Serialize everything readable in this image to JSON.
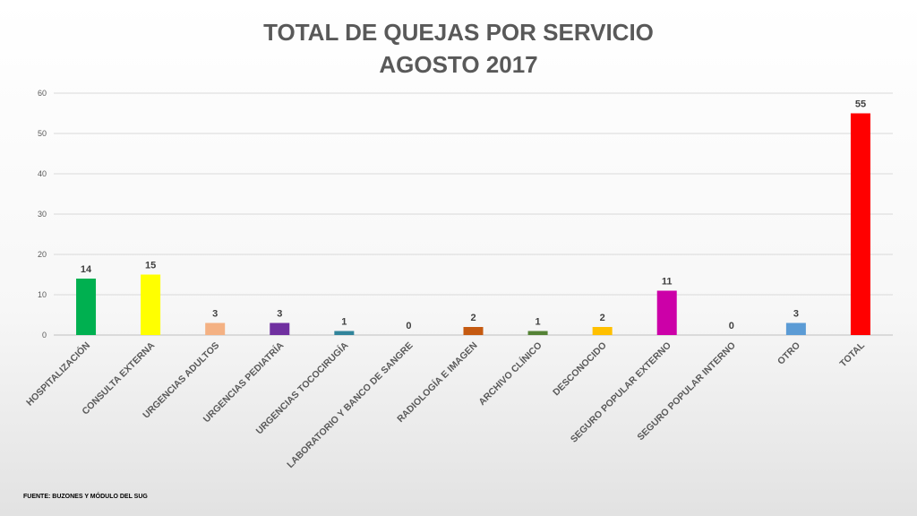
{
  "chart_data": {
    "type": "bar",
    "title": "TOTAL DE QUEJAS POR SERVICIO",
    "subtitle": "AGOSTO 2017",
    "categories": [
      "HOSPITALIZACIÓN",
      "CONSULTA EXTERNA",
      "URGENCIAS ADULTOS",
      "URGENCIAS PEDIATRÍA",
      "URGENCIAS TOCOCIRUGÍA",
      "LABORATORIO Y BANCO DE SANGRE",
      "RADIOLOGÍA E IMAGEN",
      "ARCHIVO CLÍNICO",
      "DESCONOCIDO",
      "SEGURO POPULAR EXTERNO",
      "SEGURO POPULAR INTERNO",
      "OTRO",
      "TOTAL"
    ],
    "values": [
      14,
      15,
      3,
      3,
      1,
      0,
      2,
      1,
      2,
      11,
      0,
      3,
      55
    ],
    "colors": [
      "#00b050",
      "#ffff00",
      "#f4b183",
      "#7030a0",
      "#31849b",
      "#595959",
      "#c55a11",
      "#548235",
      "#ffc000",
      "#cc00a8",
      "#595959",
      "#5b9bd5",
      "#ff0000"
    ],
    "ylim": [
      0,
      60
    ],
    "yticks": [
      0,
      10,
      20,
      30,
      40,
      50,
      60
    ],
    "grid": true,
    "legend": "none",
    "xlabel": "",
    "ylabel": ""
  },
  "footer": {
    "source": "FUENTE: BUZONES Y MÓDULO DEL SUG"
  }
}
